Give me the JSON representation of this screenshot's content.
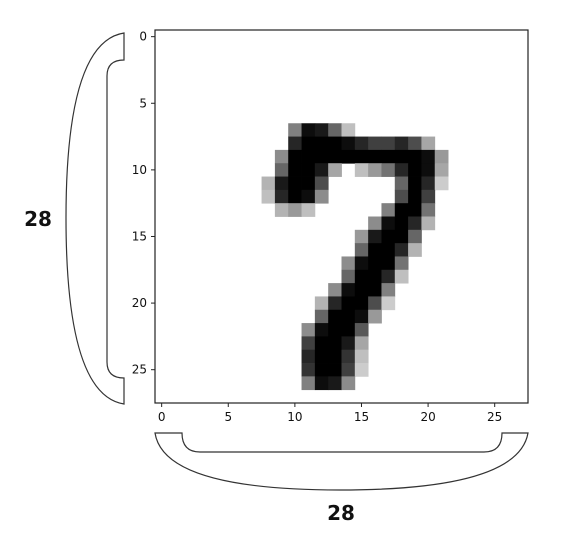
{
  "chart_data": {
    "type": "heatmap",
    "colormap": "gray_r",
    "colors": {
      "min": "#ffffff",
      "max": "#000000",
      "frame": "#222222",
      "brace": "#333333"
    },
    "shape": [
      28,
      28
    ],
    "x_ticks": [
      "0",
      "5",
      "10",
      "15",
      "20",
      "25"
    ],
    "y_ticks": [
      "0",
      "5",
      "10",
      "15",
      "20",
      "25"
    ],
    "xlim": [
      -0.5,
      27.5
    ],
    "ylim": [
      27.5,
      -0.5
    ],
    "width_label": "28",
    "height_label": "28",
    "pixels": [
      {
        "row": 7,
        "cols": [
          [
            10,
            0.5
          ],
          [
            11,
            0.95
          ],
          [
            12,
            0.9
          ],
          [
            13,
            0.6
          ],
          [
            14,
            0.25
          ]
        ]
      },
      {
        "row": 8,
        "cols": [
          [
            10,
            0.85
          ],
          [
            11,
            1.0
          ],
          [
            12,
            1.0
          ],
          [
            13,
            1.0
          ],
          [
            14,
            0.95
          ],
          [
            15,
            0.85
          ],
          [
            16,
            0.75
          ],
          [
            17,
            0.75
          ],
          [
            18,
            0.85
          ],
          [
            19,
            0.7
          ],
          [
            20,
            0.35
          ]
        ]
      },
      {
        "row": 9,
        "cols": [
          [
            9,
            0.45
          ],
          [
            10,
            1.0
          ],
          [
            11,
            1.0
          ],
          [
            12,
            1.0
          ],
          [
            13,
            1.0
          ],
          [
            14,
            1.0
          ],
          [
            15,
            1.0
          ],
          [
            16,
            1.0
          ],
          [
            17,
            1.0
          ],
          [
            18,
            1.0
          ],
          [
            19,
            1.0
          ],
          [
            20,
            0.95
          ],
          [
            21,
            0.4
          ]
        ]
      },
      {
        "row": 10,
        "cols": [
          [
            9,
            0.6
          ],
          [
            10,
            1.0
          ],
          [
            11,
            1.0
          ],
          [
            12,
            0.9
          ],
          [
            13,
            0.35
          ],
          [
            15,
            0.25
          ],
          [
            16,
            0.4
          ],
          [
            17,
            0.55
          ],
          [
            18,
            0.85
          ],
          [
            19,
            1.0
          ],
          [
            20,
            0.95
          ],
          [
            21,
            0.35
          ]
        ]
      },
      {
        "row": 11,
        "cols": [
          [
            8,
            0.3
          ],
          [
            9,
            0.9
          ],
          [
            10,
            1.0
          ],
          [
            11,
            1.0
          ],
          [
            12,
            0.7
          ],
          [
            18,
            0.6
          ],
          [
            19,
            1.0
          ],
          [
            20,
            0.85
          ],
          [
            21,
            0.2
          ]
        ]
      },
      {
        "row": 12,
        "cols": [
          [
            8,
            0.25
          ],
          [
            9,
            0.85
          ],
          [
            10,
            1.0
          ],
          [
            11,
            0.95
          ],
          [
            12,
            0.45
          ],
          [
            18,
            0.7
          ],
          [
            19,
            1.0
          ],
          [
            20,
            0.75
          ]
        ]
      },
      {
        "row": 13,
        "cols": [
          [
            9,
            0.3
          ],
          [
            10,
            0.4
          ],
          [
            11,
            0.25
          ],
          [
            17,
            0.5
          ],
          [
            18,
            1.0
          ],
          [
            19,
            1.0
          ],
          [
            20,
            0.55
          ]
        ]
      },
      {
        "row": 14,
        "cols": [
          [
            16,
            0.45
          ],
          [
            17,
            0.95
          ],
          [
            18,
            1.0
          ],
          [
            19,
            0.85
          ],
          [
            20,
            0.3
          ]
        ]
      },
      {
        "row": 15,
        "cols": [
          [
            15,
            0.4
          ],
          [
            16,
            0.9
          ],
          [
            17,
            1.0
          ],
          [
            18,
            1.0
          ],
          [
            19,
            0.6
          ]
        ]
      },
      {
        "row": 16,
        "cols": [
          [
            15,
            0.6
          ],
          [
            16,
            1.0
          ],
          [
            17,
            1.0
          ],
          [
            18,
            0.85
          ],
          [
            19,
            0.3
          ]
        ]
      },
      {
        "row": 17,
        "cols": [
          [
            14,
            0.45
          ],
          [
            15,
            0.95
          ],
          [
            16,
            1.0
          ],
          [
            17,
            1.0
          ],
          [
            18,
            0.55
          ]
        ]
      },
      {
        "row": 18,
        "cols": [
          [
            14,
            0.6
          ],
          [
            15,
            1.0
          ],
          [
            16,
            1.0
          ],
          [
            17,
            0.85
          ],
          [
            18,
            0.25
          ]
        ]
      },
      {
        "row": 19,
        "cols": [
          [
            13,
            0.45
          ],
          [
            14,
            0.95
          ],
          [
            15,
            1.0
          ],
          [
            16,
            1.0
          ],
          [
            17,
            0.5
          ]
        ]
      },
      {
        "row": 20,
        "cols": [
          [
            12,
            0.3
          ],
          [
            13,
            0.85
          ],
          [
            14,
            1.0
          ],
          [
            15,
            1.0
          ],
          [
            16,
            0.7
          ],
          [
            17,
            0.2
          ]
        ]
      },
      {
        "row": 21,
        "cols": [
          [
            12,
            0.6
          ],
          [
            13,
            1.0
          ],
          [
            14,
            1.0
          ],
          [
            15,
            0.95
          ],
          [
            16,
            0.4
          ]
        ]
      },
      {
        "row": 22,
        "cols": [
          [
            11,
            0.45
          ],
          [
            12,
            0.95
          ],
          [
            13,
            1.0
          ],
          [
            14,
            1.0
          ],
          [
            15,
            0.65
          ]
        ]
      },
      {
        "row": 23,
        "cols": [
          [
            11,
            0.75
          ],
          [
            12,
            1.0
          ],
          [
            13,
            1.0
          ],
          [
            14,
            0.9
          ],
          [
            15,
            0.35
          ]
        ]
      },
      {
        "row": 24,
        "cols": [
          [
            11,
            0.85
          ],
          [
            12,
            1.0
          ],
          [
            13,
            1.0
          ],
          [
            14,
            0.8
          ],
          [
            15,
            0.25
          ]
        ]
      },
      {
        "row": 25,
        "cols": [
          [
            11,
            0.8
          ],
          [
            12,
            1.0
          ],
          [
            13,
            1.0
          ],
          [
            14,
            0.75
          ],
          [
            15,
            0.2
          ]
        ]
      },
      {
        "row": 26,
        "cols": [
          [
            11,
            0.5
          ],
          [
            12,
            0.95
          ],
          [
            13,
            0.9
          ],
          [
            14,
            0.45
          ]
        ]
      }
    ]
  }
}
